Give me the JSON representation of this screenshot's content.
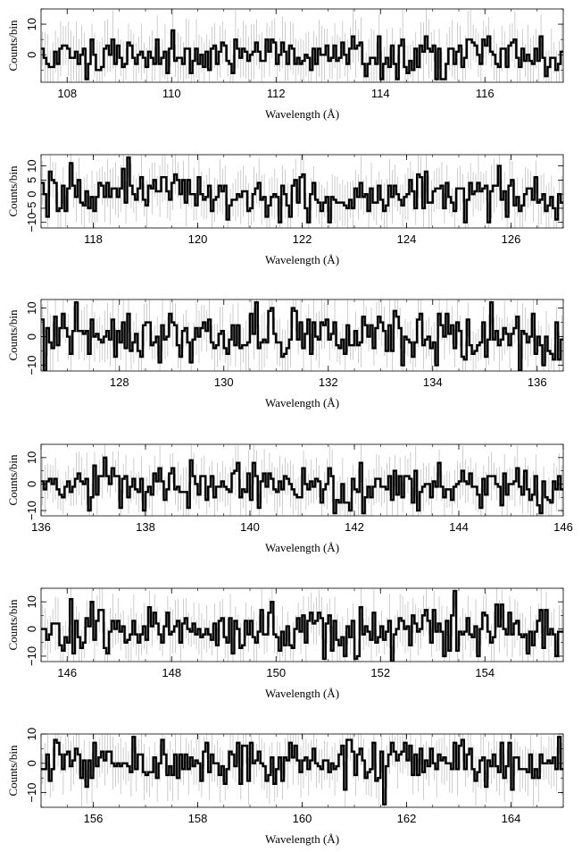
{
  "chart_data": [
    {
      "type": "line",
      "xlabel": "Wavelength (Å)",
      "ylabel": "Counts/bin",
      "xlim": [
        107.5,
        117.5
      ],
      "ylim": [
        -9,
        15
      ],
      "xticks": [
        108,
        110,
        112,
        114,
        116
      ],
      "yticks": [
        0,
        10
      ],
      "tick_labels": [
        "108",
        "110",
        "112",
        "114",
        "116"
      ],
      "ytick_labels": [
        "0",
        "10"
      ],
      "bin_width": 0.05,
      "y_range_observed": [
        -8,
        15
      ]
    },
    {
      "type": "line",
      "xlabel": "Wavelength (Å)",
      "ylabel": "Counts/bin",
      "xlim": [
        117,
        127
      ],
      "ylim": [
        -12,
        14
      ],
      "xticks": [
        118,
        120,
        122,
        124,
        126
      ],
      "yticks": [
        -10,
        -5,
        0,
        5,
        10
      ],
      "tick_labels": [
        "118",
        "120",
        "122",
        "124",
        "126"
      ],
      "ytick_labels": [
        "−10",
        "−5",
        "0",
        "5",
        "10"
      ],
      "bin_width": 0.05,
      "y_range_observed": [
        -10,
        13
      ]
    },
    {
      "type": "line",
      "xlabel": "Wavelength (Å)",
      "ylabel": "Counts/bin",
      "xlim": [
        126.5,
        136.5
      ],
      "ylim": [
        -12,
        13
      ],
      "xticks": [
        128,
        130,
        132,
        134,
        136
      ],
      "yticks": [
        -10,
        0,
        10
      ],
      "tick_labels": [
        "128",
        "130",
        "132",
        "134",
        "136"
      ],
      "ytick_labels": [
        "−10",
        "0",
        "10"
      ],
      "bin_width": 0.05,
      "y_range_observed": [
        -12,
        12
      ]
    },
    {
      "type": "line",
      "xlabel": "Wavelength (Å)",
      "ylabel": "Counts/bin",
      "xlim": [
        136,
        146
      ],
      "ylim": [
        -12,
        15
      ],
      "xticks": [
        136,
        138,
        140,
        142,
        144,
        146
      ],
      "yticks": [
        -10,
        0,
        10
      ],
      "tick_labels": [
        "136",
        "138",
        "140",
        "142",
        "144",
        "146"
      ],
      "ytick_labels": [
        "−10",
        "0",
        "10"
      ],
      "bin_width": 0.05,
      "y_range_observed": [
        -11,
        15
      ]
    },
    {
      "type": "line",
      "xlabel": "Wavelength (Å)",
      "ylabel": "Counts/bin",
      "xlim": [
        145.5,
        155.5
      ],
      "ylim": [
        -12,
        15
      ],
      "xticks": [
        146,
        148,
        150,
        152,
        154
      ],
      "yticks": [
        -10,
        0,
        10
      ],
      "tick_labels": [
        "146",
        "148",
        "150",
        "152",
        "154"
      ],
      "ytick_labels": [
        "−10",
        "0",
        "10"
      ],
      "bin_width": 0.05,
      "y_range_observed": [
        -12,
        15
      ]
    },
    {
      "type": "line",
      "xlabel": "Wavelength (Å)",
      "ylabel": "Counts/bin",
      "xlim": [
        155,
        165
      ],
      "ylim": [
        -15,
        10
      ],
      "xticks": [
        156,
        158,
        160,
        162,
        164
      ],
      "yticks": [
        -10,
        0,
        10
      ],
      "tick_labels": [
        "156",
        "158",
        "160",
        "162",
        "164"
      ],
      "ytick_labels": [
        "−10",
        "0",
        "10"
      ],
      "bin_width": 0.05,
      "y_range_observed": [
        -14,
        10
      ]
    }
  ],
  "colors": {
    "data_line": "#000000",
    "error_bars": "#b8b8b8",
    "axes": "#000000",
    "background": "#ffffff"
  }
}
